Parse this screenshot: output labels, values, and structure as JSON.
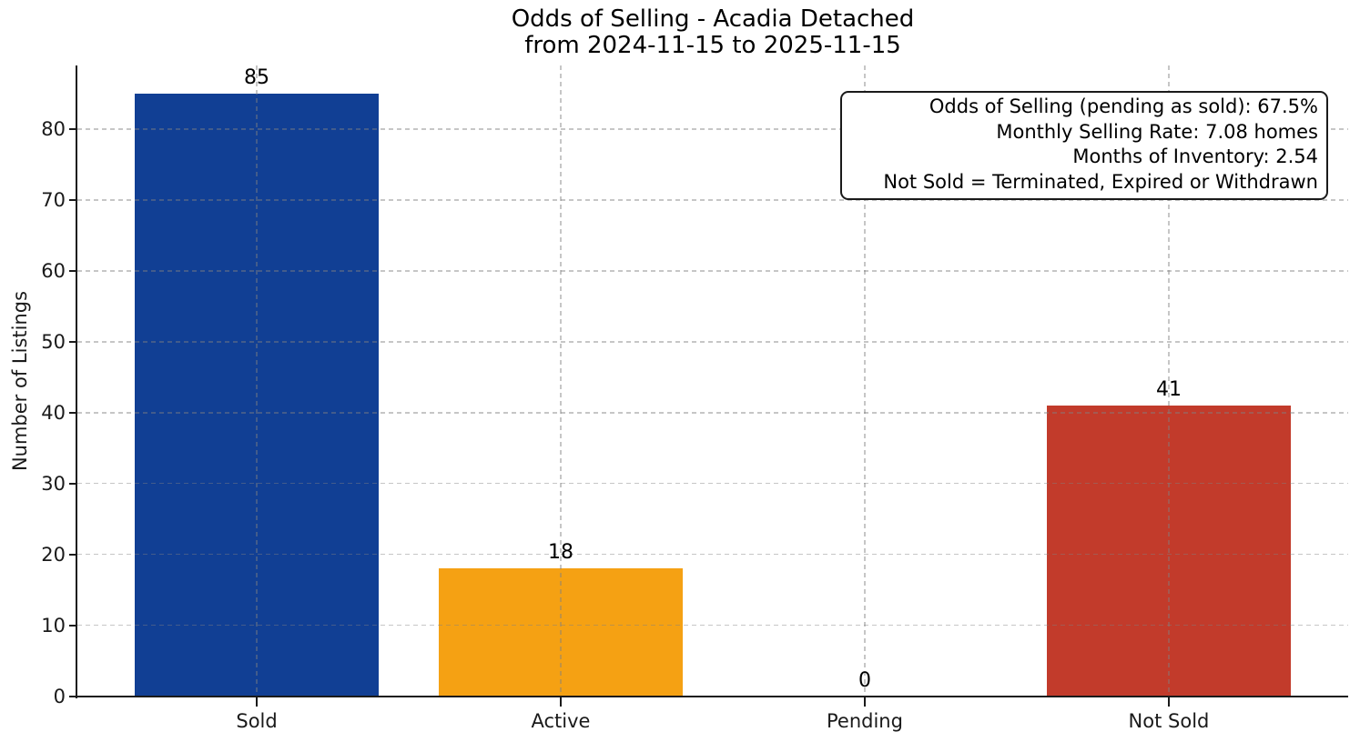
{
  "figure": {
    "background": "#ffffff",
    "text_color": "#000000",
    "grid_color": "#cccccc"
  },
  "chart_data": {
    "type": "bar",
    "title": "Odds of Selling - Acadia Detached",
    "subtitle": "from 2024-11-15 to 2025-11-15",
    "xlabel": "",
    "ylabel": "Number of Listings",
    "categories": [
      "Sold",
      "Active",
      "Pending",
      "Not Sold"
    ],
    "values": [
      85,
      18,
      0,
      41
    ],
    "value_labels": [
      "85",
      "18",
      "0",
      "41"
    ],
    "bar_colors": [
      "#113f94",
      "#f5a113",
      null,
      "#c23b2b"
    ],
    "yticks": [
      0,
      10,
      20,
      30,
      40,
      50,
      60,
      70,
      80
    ],
    "ylim": [
      0,
      89
    ],
    "xlim": [
      -0.59,
      3.59
    ],
    "bar_width": 0.8,
    "grid": "dashed",
    "legend": "none",
    "annotation_lines": [
      "Odds of Selling (pending as sold): 67.5%",
      "Monthly Selling Rate: 7.08 homes",
      "Months of Inventory: 2.54",
      "Not Sold = Terminated, Expired or Withdrawn"
    ]
  }
}
